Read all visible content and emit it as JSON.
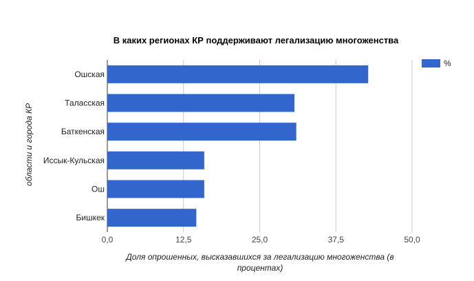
{
  "chart_data": {
    "type": "bar",
    "orientation": "horizontal",
    "title": "В каких регионах КР поддерживают легализацию многоженства",
    "xlabel_line1": "Доля опрошенных, высказавшихся за легализацию многоженства (в",
    "xlabel_line2": "процентах)",
    "ylabel": "области и города КР",
    "categories": [
      "Ошская",
      "Таласская",
      "Баткенская",
      "Иссык-Кульская",
      "Ош",
      "Бишкек"
    ],
    "series": [
      {
        "name": "%",
        "values": [
          42.8,
          30.7,
          31.0,
          15.9,
          15.9,
          14.6
        ],
        "color": "#3366cc"
      }
    ],
    "xlim": [
      0,
      50
    ],
    "ticks": [
      0,
      12.5,
      25,
      37.5,
      50
    ],
    "tick_labels": [
      "0,0",
      "12,5",
      "25,0",
      "37,5",
      "50,0"
    ],
    "grid": true,
    "legend_position": "top-right"
  }
}
